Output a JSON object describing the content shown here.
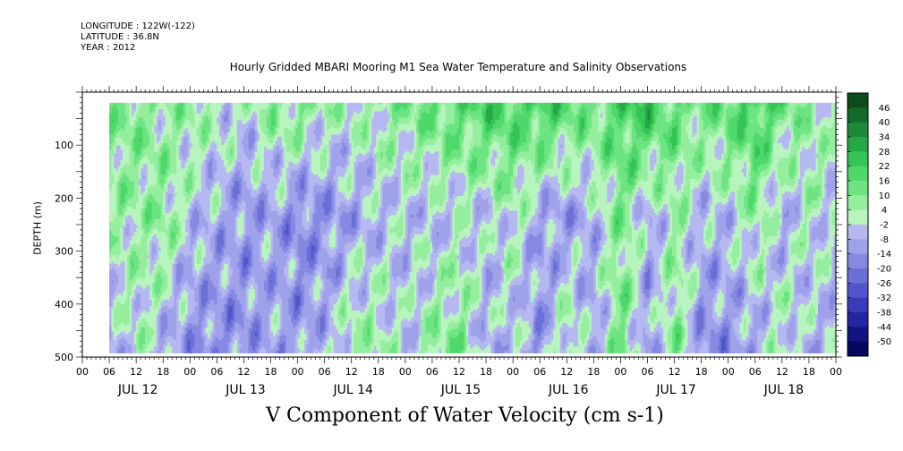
{
  "meta": {
    "longitude": "LONGITUDE : 122W(-122)",
    "latitude": "LATITUDE : 36.8N",
    "year": "YEAR : 2012"
  },
  "chart_data": {
    "type": "heatmap",
    "title": "Hourly Gridded MBARI Mooring M1 Sea Water Temperature and Salinity Observations",
    "xlabel": "V Component of Water Velocity (cm s-1)",
    "ylabel": "DEPTH (m)",
    "x_range_hours": [
      0,
      168
    ],
    "data_start_hour": 6,
    "ylim": [
      500,
      0
    ],
    "depth_data_range": [
      20,
      490
    ],
    "y_ticks": [
      100,
      200,
      300,
      400,
      500
    ],
    "x_hour_ticks": [
      "00",
      "06",
      "12",
      "18",
      "00",
      "06",
      "12",
      "18",
      "00",
      "06",
      "12",
      "18",
      "00",
      "06",
      "12",
      "18",
      "00",
      "06",
      "12",
      "18",
      "00",
      "06",
      "12",
      "18",
      "00",
      "06",
      "12",
      "18",
      "00"
    ],
    "day_labels": [
      "JUL 12",
      "JUL 13",
      "JUL 14",
      "JUL 15",
      "JUL 16",
      "JUL 17",
      "JUL 18"
    ],
    "colorbar": {
      "levels": [
        46,
        40,
        34,
        28,
        22,
        16,
        10,
        4,
        -2,
        -8,
        -14,
        -20,
        -26,
        -32,
        -38,
        -44,
        -50
      ],
      "colors": [
        "#0d4a1c",
        "#136b2a",
        "#1c8a38",
        "#27a846",
        "#35c456",
        "#4fd86a",
        "#6de482",
        "#94ee9e",
        "#b8f4be",
        "#b6b8f2",
        "#9fa2ea",
        "#8689e2",
        "#6b6fd8",
        "#5155cb",
        "#383cb8",
        "#2226a0",
        "#121580",
        "#050860"
      ]
    },
    "column_profiles": [
      {
        "hour": 6,
        "surface": 8,
        "mid": 6,
        "deep": -10
      },
      {
        "hour": 12,
        "surface": 10,
        "mid": 4,
        "deep": 2
      },
      {
        "hour": 18,
        "surface": 4,
        "mid": 8,
        "deep": -8
      },
      {
        "hour": 24,
        "surface": 6,
        "mid": -4,
        "deep": -14
      },
      {
        "hour": 30,
        "surface": 2,
        "mid": -8,
        "deep": -16
      },
      {
        "hour": 36,
        "surface": -2,
        "mid": -12,
        "deep": -14
      },
      {
        "hour": 42,
        "surface": 8,
        "mid": -10,
        "deep": -8
      },
      {
        "hour": 48,
        "surface": 10,
        "mid": -16,
        "deep": -12
      },
      {
        "hour": 54,
        "surface": 4,
        "mid": -14,
        "deep": -6
      },
      {
        "hour": 60,
        "surface": 2,
        "mid": -10,
        "deep": 6
      },
      {
        "hour": 66,
        "surface": 6,
        "mid": -6,
        "deep": 4
      },
      {
        "hour": 72,
        "surface": 8,
        "mid": -4,
        "deep": -4
      },
      {
        "hour": 78,
        "surface": 14,
        "mid": -6,
        "deep": 8
      },
      {
        "hour": 84,
        "surface": 16,
        "mid": -2,
        "deep": 10
      },
      {
        "hour": 90,
        "surface": 20,
        "mid": -4,
        "deep": -8
      },
      {
        "hour": 96,
        "surface": 18,
        "mid": 2,
        "deep": -4
      },
      {
        "hour": 102,
        "surface": 22,
        "mid": -10,
        "deep": -14
      },
      {
        "hour": 108,
        "surface": 16,
        "mid": -12,
        "deep": 8
      },
      {
        "hour": 114,
        "surface": 12,
        "mid": -6,
        "deep": -10
      },
      {
        "hour": 120,
        "surface": 20,
        "mid": 10,
        "deep": 12
      },
      {
        "hour": 126,
        "surface": 24,
        "mid": -8,
        "deep": -12
      },
      {
        "hour": 132,
        "surface": 14,
        "mid": 4,
        "deep": 10
      },
      {
        "hour": 138,
        "surface": 10,
        "mid": -6,
        "deep": -16
      },
      {
        "hour": 144,
        "surface": 16,
        "mid": -4,
        "deep": -14
      },
      {
        "hour": 150,
        "surface": 22,
        "mid": 6,
        "deep": -10
      },
      {
        "hour": 156,
        "surface": 12,
        "mid": -8,
        "deep": 4
      },
      {
        "hour": 162,
        "surface": 6,
        "mid": 2,
        "deep": -8
      },
      {
        "hour": 168,
        "surface": 2,
        "mid": -6,
        "deep": -4
      }
    ]
  }
}
